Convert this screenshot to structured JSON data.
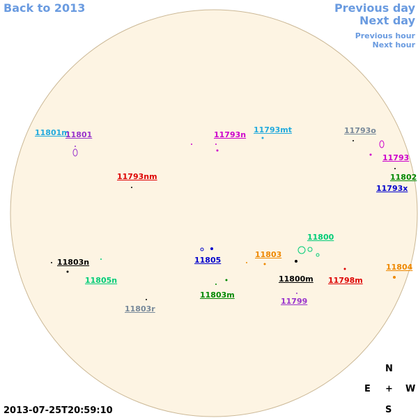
{
  "nav": {
    "back": "Back to 2013",
    "previous_day": "Previous day",
    "next_day": "Next day",
    "previous_hour": "Previous hour",
    "next_hour": "Next hour"
  },
  "regions": [
    "11801m",
    "11801",
    "11793n",
    "11793mt",
    "11793o",
    "11793",
    "11802",
    "11793x",
    "11793nm",
    "11800",
    "11803",
    "11803n",
    "11805",
    "11805n",
    "11800m",
    "11798m",
    "11804",
    "11803m",
    "11799",
    "11803r"
  ],
  "compass": {
    "north": "N",
    "east": "E",
    "center": "+",
    "west": "W",
    "south": "S"
  },
  "timestamp": "2013-07-25T20:59:10"
}
